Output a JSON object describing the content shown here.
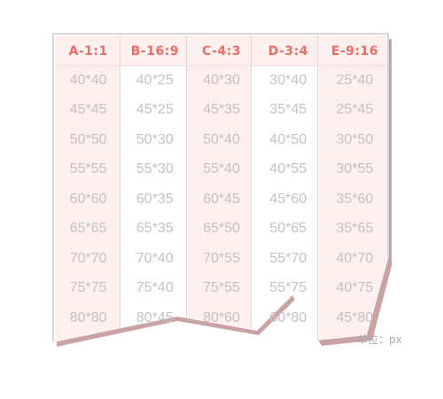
{
  "table": {
    "headers": [
      "A-1:1",
      "B-16:9",
      "C-4:3",
      "D-3:4",
      "E-9:16"
    ],
    "columns": [
      [
        "40*40",
        "45*45",
        "50*50",
        "55*55",
        "60*60",
        "65*65",
        "70*70",
        "75*75",
        "80*80"
      ],
      [
        "40*25",
        "45*25",
        "50*30",
        "55*30",
        "60*35",
        "65*35",
        "70*40",
        "75*40",
        "80*45"
      ],
      [
        "40*30",
        "45*35",
        "50*40",
        "55*40",
        "60*45",
        "65*50",
        "70*55",
        "75*55",
        "80*60"
      ],
      [
        "30*40",
        "35*45",
        "40*50",
        "40*55",
        "45*60",
        "50*65",
        "55*70",
        "55*75",
        "60*80"
      ],
      [
        "25*40",
        "25*45",
        "30*50",
        "30*55",
        "35*60",
        "35*65",
        "40*70",
        "40*75",
        "45*80"
      ]
    ]
  },
  "unit_label": "单位：px",
  "colors": {
    "header_text": "#ee6d63",
    "cell_text": "#c8c0c0",
    "pink_fill": "#fdf0ef",
    "shadow": "#c9a3a3",
    "border": "#d8d8d8"
  }
}
